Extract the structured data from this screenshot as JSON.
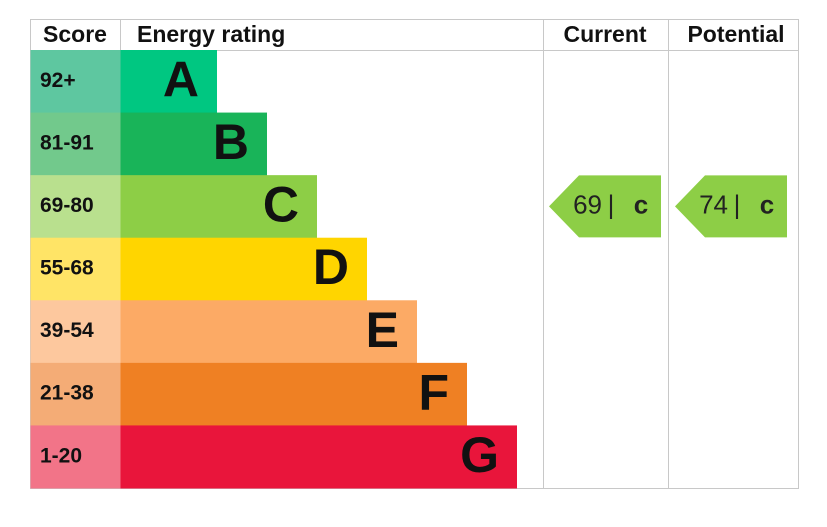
{
  "headers": {
    "score": "Score",
    "rating": "Energy rating",
    "current": "Current",
    "potential": "Potential"
  },
  "bands": [
    {
      "score": "92+",
      "letter": "A",
      "color": "#00c781",
      "score_color": "#5ec7a0"
    },
    {
      "score": "81-91",
      "letter": "B",
      "color": "#19b459",
      "score_color": "#72c98c"
    },
    {
      "score": "69-80",
      "letter": "C",
      "color": "#8dce46",
      "score_color": "#b9e08e"
    },
    {
      "score": "55-68",
      "letter": "D",
      "color": "#ffd500",
      "score_color": "#ffe466"
    },
    {
      "score": "39-54",
      "letter": "E",
      "color": "#fcaa65",
      "score_color": "#fdc89e"
    },
    {
      "score": "21-38",
      "letter": "F",
      "color": "#ef8023",
      "score_color": "#f4ac76"
    },
    {
      "score": "1-20",
      "letter": "G",
      "color": "#e9153b",
      "score_color": "#f27488"
    }
  ],
  "current": {
    "value": 69,
    "separator": "|",
    "letter": "c",
    "color": "#8dce46"
  },
  "potential": {
    "value": 74,
    "separator": "|",
    "letter": "c",
    "color": "#8dce46"
  }
}
